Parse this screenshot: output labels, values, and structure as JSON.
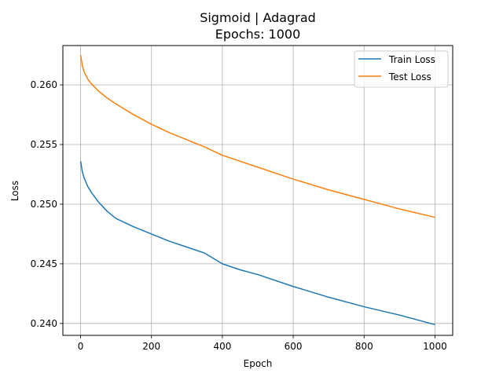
{
  "chart_data": {
    "type": "line",
    "title": "Sigmoid | Adagrad",
    "subtitle": "Epochs: 1000",
    "xlabel": "Epoch",
    "ylabel": "Loss",
    "xlim": [
      -50,
      1050
    ],
    "ylim": [
      0.239,
      0.2633
    ],
    "x_ticks": [
      0,
      200,
      400,
      600,
      800,
      1000
    ],
    "y_ticks": [
      0.24,
      0.245,
      0.25,
      0.255,
      0.26
    ],
    "x_tick_labels": [
      "0",
      "200",
      "400",
      "600",
      "800",
      "1000"
    ],
    "y_tick_labels": [
      "0.240",
      "0.245",
      "0.250",
      "0.255",
      "0.260"
    ],
    "grid": true,
    "legend_position": "top-right",
    "series": [
      {
        "name": "Train Loss",
        "color": "#1f77b4",
        "x": [
          0,
          5,
          10,
          20,
          30,
          50,
          75,
          100,
          150,
          200,
          250,
          300,
          350,
          400,
          450,
          500,
          600,
          700,
          800,
          900,
          1000
        ],
        "y": [
          0.2536,
          0.2527,
          0.2522,
          0.2515,
          0.251,
          0.2502,
          0.2494,
          0.2488,
          0.2481,
          0.2475,
          0.2469,
          0.2464,
          0.2459,
          0.245,
          0.2445,
          0.2441,
          0.2431,
          0.2422,
          0.2414,
          0.2407,
          0.2399
        ]
      },
      {
        "name": "Test Loss",
        "color": "#ff7f0e",
        "x": [
          0,
          5,
          10,
          20,
          30,
          50,
          75,
          100,
          150,
          200,
          250,
          300,
          350,
          400,
          450,
          500,
          600,
          700,
          800,
          900,
          1000
        ],
        "y": [
          0.2625,
          0.2616,
          0.2611,
          0.2605,
          0.2601,
          0.2595,
          0.2589,
          0.2584,
          0.2575,
          0.2567,
          0.256,
          0.2554,
          0.2548,
          0.2541,
          0.2536,
          0.2531,
          0.2521,
          0.2512,
          0.2504,
          0.2496,
          0.2489
        ]
      }
    ]
  }
}
